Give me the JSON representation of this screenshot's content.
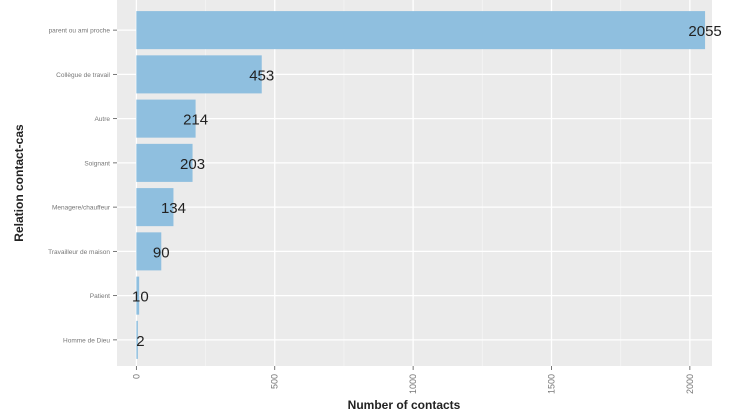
{
  "chart_data": {
    "type": "bar",
    "orientation": "horizontal",
    "categories": [
      "parent ou ami proche",
      "Collègue de travail",
      "Autre",
      "Soignant",
      "Menagere/chauffeur",
      "Travailleur de maison",
      "Patient",
      "Homme de Dieu"
    ],
    "values": [
      2055,
      453,
      214,
      203,
      134,
      90,
      10,
      2
    ],
    "data_labels": [
      "2055",
      "453",
      "214",
      "203",
      "134",
      "90",
      "10",
      "2"
    ],
    "xlabel": "Number of contacts",
    "ylabel": "Relation contact-cas",
    "xlim": [
      -70,
      2080
    ],
    "x_ticks": [
      0,
      500,
      1000,
      1500,
      2000
    ],
    "x_tick_labels": [
      "0",
      "500",
      "1000",
      "1500",
      "2000"
    ],
    "grid": true,
    "legend": "none",
    "colors": {
      "bar": "#8fbfdf",
      "panel_background": "#ebebeb",
      "grid_major": "#ffffff",
      "grid_minor": "#f4f4f4",
      "text": "#222222",
      "tick_text": "#777777"
    }
  }
}
